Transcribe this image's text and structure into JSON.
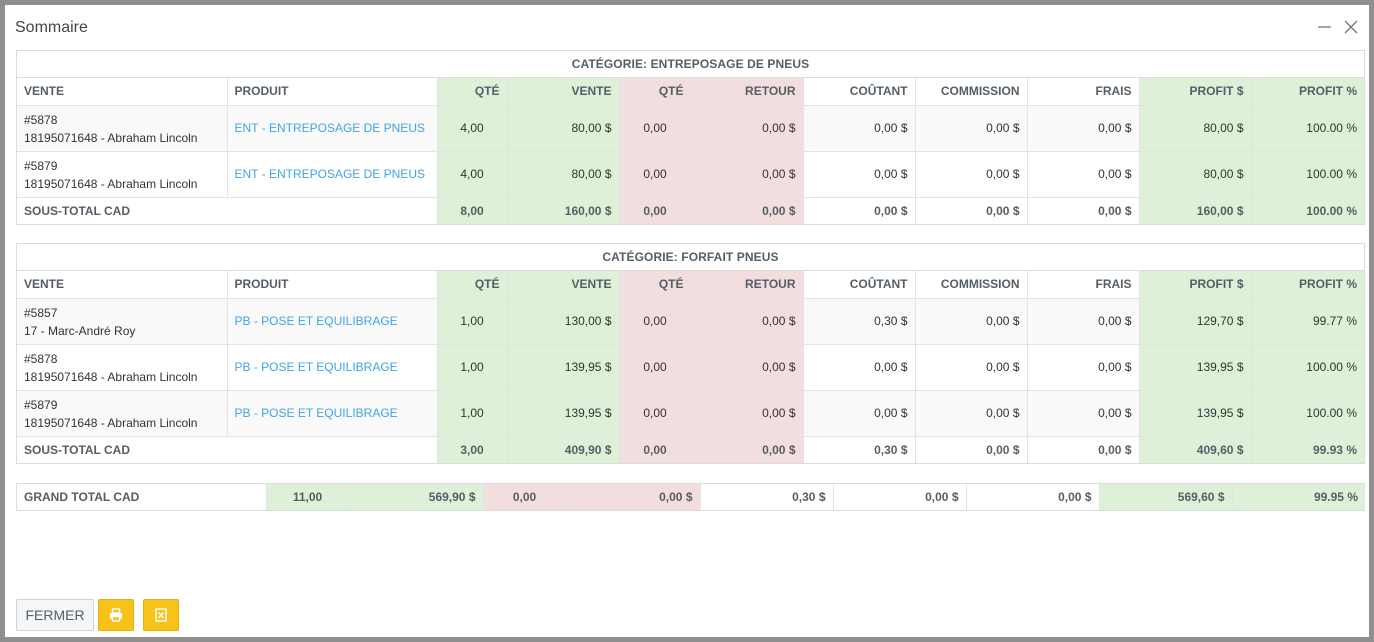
{
  "dialog": {
    "title": "Sommaire"
  },
  "columns": {
    "vente": "VENTE",
    "produit": "PRODUIT",
    "qte": "QTÉ",
    "vente_amt": "VENTE",
    "qte_ret": "QTÉ",
    "retour": "RETOUR",
    "coutant": "COÛTANT",
    "commission": "COMMISSION",
    "frais": "FRAIS",
    "profit_amt": "PROFIT $",
    "profit_pct": "PROFIT %"
  },
  "categories": [
    {
      "title": "CATÉGORIE: ENTREPOSAGE DE PNEUS",
      "rows": [
        {
          "sale_no": "#5878",
          "customer": "18195071648 - Abraham Lincoln",
          "product": "ENT - ENTREPOSAGE DE PNEUS",
          "qte": "4,00",
          "vente": "80,00 $",
          "qte_ret": "0,00",
          "retour": "0,00 $",
          "coutant": "0,00 $",
          "commission": "0,00 $",
          "frais": "0,00 $",
          "profit": "80,00 $",
          "profit_pct": "100.00 %"
        },
        {
          "sale_no": "#5879",
          "customer": "18195071648 - Abraham Lincoln",
          "product": "ENT - ENTREPOSAGE DE PNEUS",
          "qte": "4,00",
          "vente": "80,00 $",
          "qte_ret": "0,00",
          "retour": "0,00 $",
          "coutant": "0,00 $",
          "commission": "0,00 $",
          "frais": "0,00 $",
          "profit": "80,00 $",
          "profit_pct": "100.00 %"
        }
      ],
      "subtotal": {
        "label": "SOUS-TOTAL CAD",
        "qte": "8,00",
        "vente": "160,00 $",
        "qte_ret": "0,00",
        "retour": "0,00 $",
        "coutant": "0,00 $",
        "commission": "0,00 $",
        "frais": "0,00 $",
        "profit": "160,00 $",
        "profit_pct": "100.00 %"
      }
    },
    {
      "title": "CATÉGORIE: FORFAIT PNEUS",
      "rows": [
        {
          "sale_no": "#5857",
          "customer": "17 - Marc-André Roy",
          "product": "PB - POSE ET EQUILIBRAGE",
          "qte": "1,00",
          "vente": "130,00 $",
          "qte_ret": "0,00",
          "retour": "0,00 $",
          "coutant": "0,30 $",
          "commission": "0,00 $",
          "frais": "0,00 $",
          "profit": "129,70 $",
          "profit_pct": "99.77 %"
        },
        {
          "sale_no": "#5878",
          "customer": "18195071648 - Abraham Lincoln",
          "product": "PB - POSE ET EQUILIBRAGE",
          "qte": "1,00",
          "vente": "139,95 $",
          "qte_ret": "0,00",
          "retour": "0,00 $",
          "coutant": "0,00 $",
          "commission": "0,00 $",
          "frais": "0,00 $",
          "profit": "139,95 $",
          "profit_pct": "100.00 %"
        },
        {
          "sale_no": "#5879",
          "customer": "18195071648 - Abraham Lincoln",
          "product": "PB - POSE ET EQUILIBRAGE",
          "qte": "1,00",
          "vente": "139,95 $",
          "qte_ret": "0,00",
          "retour": "0,00 $",
          "coutant": "0,00 $",
          "commission": "0,00 $",
          "frais": "0,00 $",
          "profit": "139,95 $",
          "profit_pct": "100.00 %"
        }
      ],
      "subtotal": {
        "label": "SOUS-TOTAL CAD",
        "qte": "3,00",
        "vente": "409,90 $",
        "qte_ret": "0,00",
        "retour": "0,00 $",
        "coutant": "0,30 $",
        "commission": "0,00 $",
        "frais": "0,00 $",
        "profit": "409,60 $",
        "profit_pct": "99.93 %"
      }
    }
  ],
  "grand_total": {
    "label": "GRAND TOTAL CAD",
    "qte": "11,00",
    "vente": "569,90 $",
    "qte_ret": "0,00",
    "retour": "0,00 $",
    "coutant": "0,30 $",
    "commission": "0,00 $",
    "frais": "0,00 $",
    "profit": "569,60 $",
    "profit_pct": "99.95 %"
  },
  "footer": {
    "close_label": "FERMER",
    "print_icon": "print-icon",
    "excel_icon": "excel-file-icon"
  },
  "colors": {
    "green_cell": "#dff0d8",
    "red_cell": "#f2dede",
    "link": "#3fa6e0",
    "yellow_button": "#f7c31b"
  }
}
